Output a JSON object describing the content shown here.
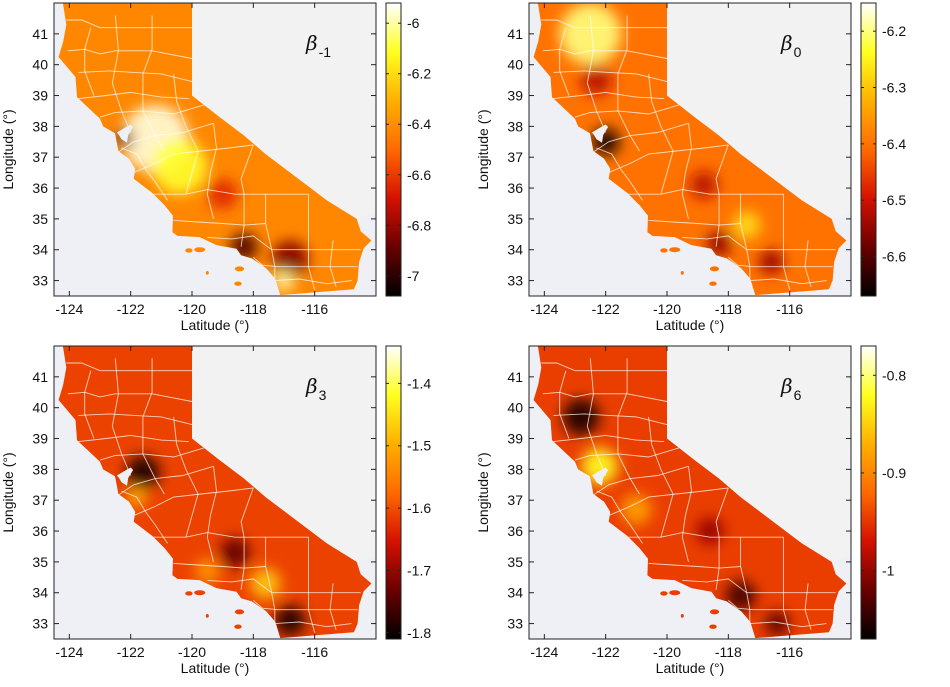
{
  "colors": {
    "background": "#eef0f6",
    "nevada_area": "#f2f2f2",
    "county_lines": "#ffffff",
    "colormap": [
      "#000000",
      "#6a0000",
      "#d41100",
      "#ff6a00",
      "#ffb000",
      "#ffff20",
      "#ffffff"
    ]
  },
  "chart_data": [
    {
      "type": "heatmap",
      "subject": "California map",
      "symbol": "β",
      "subscript": "-1",
      "xlabel": "Latitude (°)",
      "ylabel": "Longitude (°)",
      "xticks": [
        "-124",
        "-122",
        "-120",
        "-118",
        "-116"
      ],
      "yticks": [
        "41",
        "40",
        "39",
        "38",
        "37",
        "36",
        "35",
        "34",
        "33"
      ],
      "xlim": [
        -124.5,
        -114
      ],
      "ylim": [
        32.5,
        42
      ],
      "colorbar": {
        "ticks": [
          "-6",
          "-6.2",
          "-6.4",
          "-6.6",
          "-6.8",
          "-7"
        ],
        "min": -7.08,
        "max": -5.92
      },
      "base_value": -6.42,
      "features": [
        {
          "lon": -121.2,
          "lat": 37.6,
          "value": -5.95,
          "radius": 1.1
        },
        {
          "lon": -120.4,
          "lat": 36.7,
          "value": -6.1,
          "radius": 0.9
        },
        {
          "lon": -122.2,
          "lat": 37.6,
          "value": -6.9,
          "radius": 0.3
        },
        {
          "lon": -118.3,
          "lat": 34.1,
          "value": -6.95,
          "radius": 0.45
        },
        {
          "lon": -116.8,
          "lat": 33.7,
          "value": -6.85,
          "radius": 0.6
        },
        {
          "lon": -117.0,
          "lat": 33.0,
          "value": -6.0,
          "radius": 0.35
        },
        {
          "lon": -119.0,
          "lat": 35.8,
          "value": -6.65,
          "radius": 0.5
        }
      ]
    },
    {
      "type": "heatmap",
      "subject": "California map",
      "symbol": "β",
      "subscript": "0",
      "xlabel": "Latitude (°)",
      "ylabel": "Longitude (°)",
      "xticks": [
        "-124",
        "-122",
        "-120",
        "-118",
        "-116"
      ],
      "yticks": [
        "41",
        "40",
        "39",
        "38",
        "37",
        "36",
        "35",
        "34",
        "33"
      ],
      "xlim": [
        -124.5,
        -114
      ],
      "ylim": [
        32.5,
        42
      ],
      "colorbar": {
        "ticks": [
          "-6.2",
          "-6.3",
          "-6.4",
          "-6.5",
          "-6.6"
        ],
        "min": -6.67,
        "max": -6.15
      },
      "base_value": -6.4,
      "features": [
        {
          "lon": -122.5,
          "lat": 41.0,
          "value": -6.2,
          "radius": 1.0
        },
        {
          "lon": -122.3,
          "lat": 39.5,
          "value": -6.52,
          "radius": 0.5
        },
        {
          "lon": -122.0,
          "lat": 37.5,
          "value": -6.66,
          "radius": 0.45
        },
        {
          "lon": -118.8,
          "lat": 36.1,
          "value": -6.52,
          "radius": 0.45
        },
        {
          "lon": -118.3,
          "lat": 34.2,
          "value": -6.56,
          "radius": 0.4
        },
        {
          "lon": -117.4,
          "lat": 34.8,
          "value": -6.27,
          "radius": 0.45
        },
        {
          "lon": -116.6,
          "lat": 33.6,
          "value": -6.55,
          "radius": 0.4
        }
      ]
    },
    {
      "type": "heatmap",
      "subject": "California map",
      "symbol": "β",
      "subscript": "3",
      "xlabel": "Latitude (°)",
      "ylabel": "Longitude (°)",
      "xticks": [
        "-124",
        "-122",
        "-120",
        "-118",
        "-116"
      ],
      "yticks": [
        "41",
        "40",
        "39",
        "38",
        "37",
        "36",
        "35",
        "34",
        "33"
      ],
      "xlim": [
        -124.5,
        -114
      ],
      "ylim": [
        32.5,
        42
      ],
      "colorbar": {
        "ticks": [
          "-1.4",
          "-1.5",
          "-1.6",
          "-1.7",
          "-1.8"
        ],
        "min": -1.81,
        "max": -1.34
      },
      "base_value": -1.61,
      "features": [
        {
          "lon": -121.6,
          "lat": 37.9,
          "value": -1.79,
          "radius": 0.55
        },
        {
          "lon": -121.8,
          "lat": 37.1,
          "value": -1.48,
          "radius": 0.3
        },
        {
          "lon": -118.6,
          "lat": 35.3,
          "value": -1.74,
          "radius": 0.5
        },
        {
          "lon": -117.6,
          "lat": 34.3,
          "value": -1.47,
          "radius": 0.5
        },
        {
          "lon": -116.8,
          "lat": 33.1,
          "value": -1.79,
          "radius": 0.5
        },
        {
          "lon": -119.5,
          "lat": 34.7,
          "value": -1.52,
          "radius": 0.4
        }
      ]
    },
    {
      "type": "heatmap",
      "subject": "California map",
      "symbol": "β",
      "subscript": "6",
      "xlabel": "Latitude (°)",
      "ylabel": "Longitude (°)",
      "xticks": [
        "-124",
        "-122",
        "-120",
        "-118",
        "-116"
      ],
      "yticks": [
        "41",
        "40",
        "39",
        "38",
        "37",
        "36",
        "35",
        "34",
        "33"
      ],
      "xlim": [
        -124.5,
        -114
      ],
      "ylim": [
        32.5,
        42
      ],
      "colorbar": {
        "ticks": [
          "-0.8",
          "-0.9",
          "-1"
        ],
        "min": -1.07,
        "max": -0.77
      },
      "base_value": -0.945,
      "features": [
        {
          "lon": -122.8,
          "lat": 39.7,
          "value": -1.06,
          "radius": 0.6
        },
        {
          "lon": -122.2,
          "lat": 38.1,
          "value": -0.82,
          "radius": 0.6
        },
        {
          "lon": -121.0,
          "lat": 36.7,
          "value": -0.88,
          "radius": 0.5
        },
        {
          "lon": -118.6,
          "lat": 36.0,
          "value": -1.0,
          "radius": 0.45
        },
        {
          "lon": -117.6,
          "lat": 33.9,
          "value": -1.04,
          "radius": 0.5
        },
        {
          "lon": -116.4,
          "lat": 33.0,
          "value": -1.03,
          "radius": 0.4
        }
      ]
    }
  ]
}
